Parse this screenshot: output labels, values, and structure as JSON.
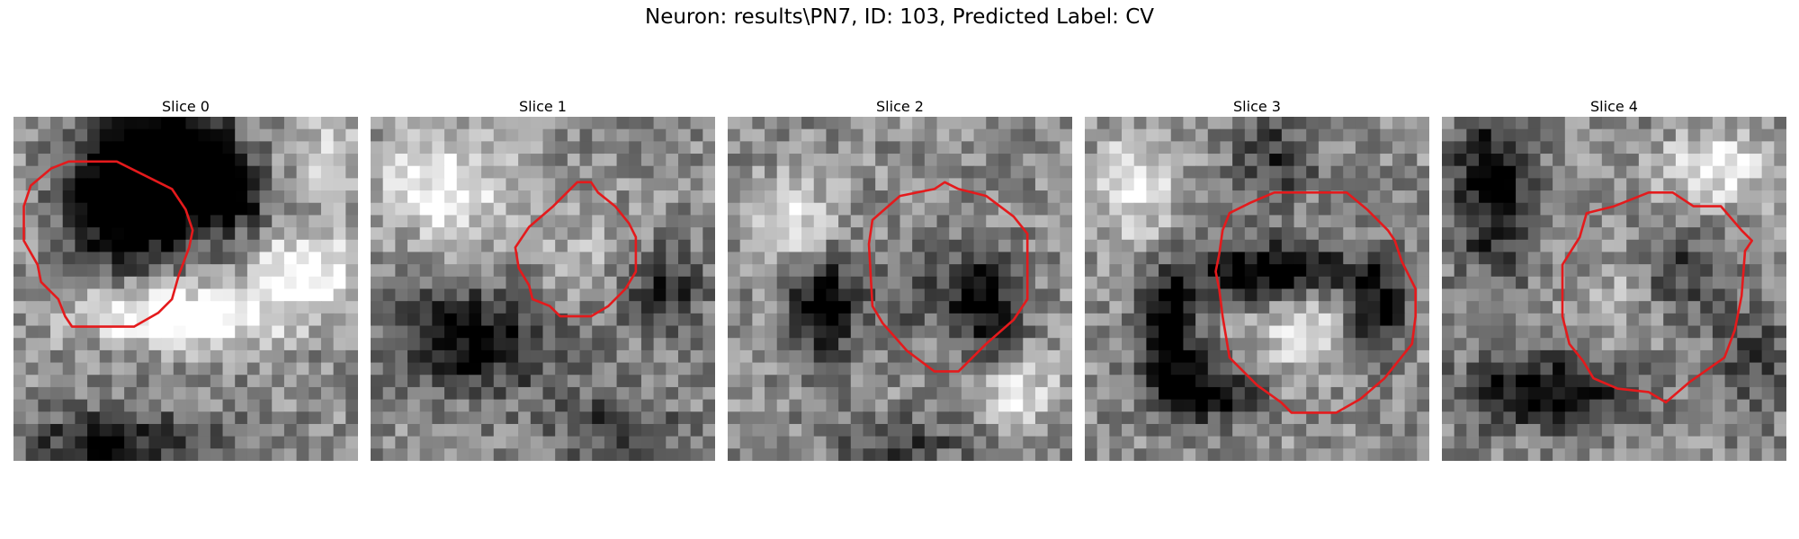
{
  "figure": {
    "title": "Neuron: results\\PN7, ID: 103, Predicted Label: CV"
  },
  "contour_color": "#e41a1c",
  "panels": [
    {
      "title": "Slice 0",
      "blobs": [
        [
          0.45,
          0.15,
          0.18,
          0.2,
          -0.95
        ],
        [
          0.3,
          0.25,
          0.14,
          0.16,
          -0.7
        ],
        [
          0.62,
          0.22,
          0.1,
          0.1,
          -0.6
        ],
        [
          0.5,
          0.58,
          0.28,
          0.08,
          0.65
        ],
        [
          0.85,
          0.45,
          0.15,
          0.1,
          0.55
        ],
        [
          0.3,
          0.95,
          0.3,
          0.1,
          -0.45
        ],
        [
          0.9,
          0.1,
          0.12,
          0.15,
          0.2
        ]
      ],
      "contour": [
        [
          0.3,
          0.13
        ],
        [
          0.16,
          0.13
        ],
        [
          0.11,
          0.15
        ],
        [
          0.05,
          0.2
        ],
        [
          0.03,
          0.26
        ],
        [
          0.03,
          0.36
        ],
        [
          0.07,
          0.43
        ],
        [
          0.08,
          0.48
        ],
        [
          0.13,
          0.53
        ],
        [
          0.15,
          0.58
        ],
        [
          0.17,
          0.61
        ],
        [
          0.35,
          0.61
        ],
        [
          0.42,
          0.57
        ],
        [
          0.46,
          0.53
        ],
        [
          0.48,
          0.46
        ],
        [
          0.51,
          0.38
        ],
        [
          0.52,
          0.33
        ],
        [
          0.5,
          0.27
        ],
        [
          0.46,
          0.21
        ],
        [
          0.4,
          0.18
        ],
        [
          0.36,
          0.16
        ]
      ]
    },
    {
      "title": "Slice 1",
      "blobs": [
        [
          0.2,
          0.2,
          0.18,
          0.15,
          0.45
        ],
        [
          0.3,
          0.65,
          0.25,
          0.15,
          -0.55
        ],
        [
          0.85,
          0.5,
          0.12,
          0.12,
          -0.4
        ],
        [
          0.6,
          0.4,
          0.15,
          0.15,
          0.15
        ],
        [
          0.7,
          0.9,
          0.2,
          0.1,
          -0.3
        ]
      ],
      "contour": [
        [
          0.6,
          0.19
        ],
        [
          0.53,
          0.26
        ],
        [
          0.46,
          0.32
        ],
        [
          0.42,
          0.38
        ],
        [
          0.43,
          0.44
        ],
        [
          0.46,
          0.49
        ],
        [
          0.47,
          0.53
        ],
        [
          0.52,
          0.55
        ],
        [
          0.55,
          0.58
        ],
        [
          0.64,
          0.58
        ],
        [
          0.69,
          0.55
        ],
        [
          0.74,
          0.5
        ],
        [
          0.77,
          0.45
        ],
        [
          0.77,
          0.35
        ],
        [
          0.75,
          0.31
        ],
        [
          0.71,
          0.26
        ],
        [
          0.66,
          0.22
        ],
        [
          0.64,
          0.19
        ]
      ]
    },
    {
      "title": "Slice 2",
      "blobs": [
        [
          0.28,
          0.55,
          0.1,
          0.15,
          -0.6
        ],
        [
          0.75,
          0.55,
          0.1,
          0.15,
          -0.55
        ],
        [
          0.55,
          0.5,
          0.12,
          0.12,
          -0.25
        ],
        [
          0.2,
          0.3,
          0.12,
          0.12,
          0.35
        ],
        [
          0.85,
          0.8,
          0.12,
          0.1,
          0.35
        ],
        [
          0.5,
          0.95,
          0.2,
          0.08,
          -0.3
        ]
      ],
      "contour": [
        [
          0.63,
          0.19
        ],
        [
          0.6,
          0.21
        ],
        [
          0.5,
          0.23
        ],
        [
          0.42,
          0.3
        ],
        [
          0.41,
          0.37
        ],
        [
          0.42,
          0.55
        ],
        [
          0.45,
          0.6
        ],
        [
          0.52,
          0.68
        ],
        [
          0.6,
          0.74
        ],
        [
          0.67,
          0.74
        ],
        [
          0.75,
          0.66
        ],
        [
          0.83,
          0.59
        ],
        [
          0.87,
          0.53
        ],
        [
          0.87,
          0.34
        ],
        [
          0.83,
          0.29
        ],
        [
          0.75,
          0.23
        ],
        [
          0.67,
          0.21
        ]
      ]
    },
    {
      "title": "Slice 3",
      "blobs": [
        [
          0.55,
          0.45,
          0.2,
          0.08,
          -0.75
        ],
        [
          0.25,
          0.62,
          0.08,
          0.18,
          -0.7
        ],
        [
          0.35,
          0.8,
          0.15,
          0.08,
          -0.55
        ],
        [
          0.85,
          0.55,
          0.08,
          0.15,
          -0.55
        ],
        [
          0.62,
          0.62,
          0.14,
          0.14,
          0.3
        ],
        [
          0.55,
          0.12,
          0.12,
          0.12,
          -0.35
        ],
        [
          0.15,
          0.2,
          0.12,
          0.15,
          0.4
        ]
      ],
      "contour": [
        [
          0.55,
          0.22
        ],
        [
          0.48,
          0.25
        ],
        [
          0.42,
          0.28
        ],
        [
          0.4,
          0.33
        ],
        [
          0.39,
          0.4
        ],
        [
          0.38,
          0.45
        ],
        [
          0.39,
          0.5
        ],
        [
          0.4,
          0.58
        ],
        [
          0.42,
          0.7
        ],
        [
          0.5,
          0.78
        ],
        [
          0.57,
          0.83
        ],
        [
          0.6,
          0.86
        ],
        [
          0.73,
          0.86
        ],
        [
          0.8,
          0.82
        ],
        [
          0.87,
          0.76
        ],
        [
          0.95,
          0.66
        ],
        [
          0.96,
          0.58
        ],
        [
          0.96,
          0.5
        ],
        [
          0.92,
          0.42
        ],
        [
          0.9,
          0.36
        ],
        [
          0.88,
          0.33
        ],
        [
          0.82,
          0.27
        ],
        [
          0.76,
          0.22
        ]
      ]
    },
    {
      "title": "Slice 4",
      "blobs": [
        [
          0.15,
          0.2,
          0.12,
          0.25,
          -0.55
        ],
        [
          0.3,
          0.8,
          0.25,
          0.1,
          -0.6
        ],
        [
          0.7,
          0.45,
          0.12,
          0.12,
          -0.3
        ],
        [
          0.9,
          0.7,
          0.12,
          0.15,
          -0.3
        ],
        [
          0.8,
          0.15,
          0.15,
          0.1,
          0.45
        ],
        [
          0.5,
          0.55,
          0.12,
          0.15,
          0.15
        ]
      ],
      "contour": [
        [
          0.6,
          0.22
        ],
        [
          0.5,
          0.26
        ],
        [
          0.42,
          0.28
        ],
        [
          0.4,
          0.35
        ],
        [
          0.35,
          0.43
        ],
        [
          0.35,
          0.58
        ],
        [
          0.37,
          0.66
        ],
        [
          0.41,
          0.71
        ],
        [
          0.44,
          0.76
        ],
        [
          0.51,
          0.79
        ],
        [
          0.6,
          0.8
        ],
        [
          0.65,
          0.83
        ],
        [
          0.72,
          0.77
        ],
        [
          0.82,
          0.7
        ],
        [
          0.85,
          0.62
        ],
        [
          0.87,
          0.52
        ],
        [
          0.88,
          0.39
        ],
        [
          0.9,
          0.36
        ],
        [
          0.87,
          0.33
        ],
        [
          0.81,
          0.26
        ],
        [
          0.73,
          0.26
        ],
        [
          0.67,
          0.22
        ]
      ]
    }
  ]
}
